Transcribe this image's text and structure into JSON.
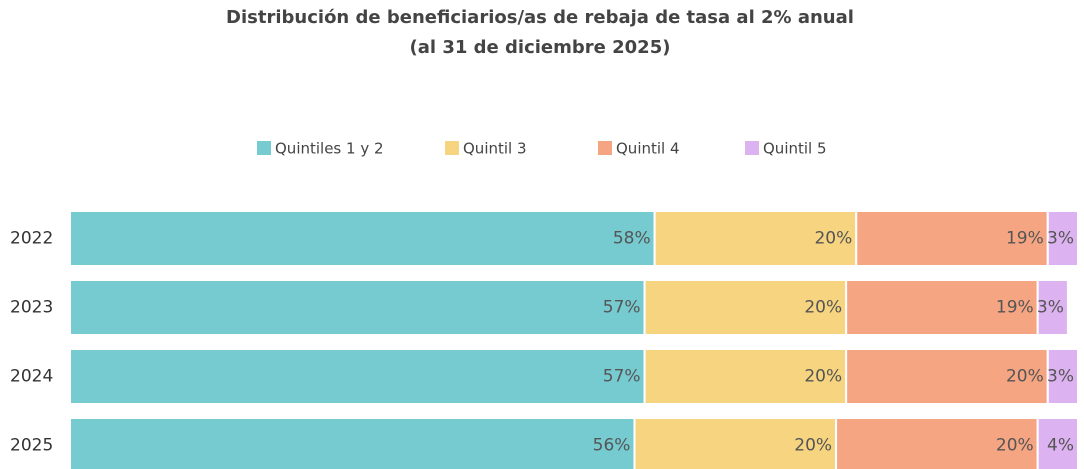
{
  "chart_data": {
    "type": "stacked_barh",
    "title": "Distribución de beneficiarios/as de rebaja de tasa al 2% anual",
    "subtitle": "(al 31 de diciembre 2025)",
    "categories": [
      "2022",
      "2023",
      "2024",
      "2025"
    ],
    "series": [
      {
        "name": "Quintiles 1 y 2",
        "color": "#76cbd1",
        "values": [
          58,
          57,
          57,
          56
        ],
        "value_labels": [
          "58%",
          "57%",
          "57%",
          "56%"
        ]
      },
      {
        "name": "Quintil 3",
        "color": "#f7d480",
        "values": [
          20,
          20,
          20,
          20
        ],
        "value_labels": [
          "20%",
          "20%",
          "20%",
          "20%"
        ]
      },
      {
        "name": "Quintil 4",
        "color": "#f6a582",
        "values": [
          19,
          19,
          20,
          20
        ],
        "value_labels": [
          "19%",
          "19%",
          "20%",
          "20%"
        ]
      },
      {
        "name": "Quintil 5",
        "color": "#ddb2f0",
        "values": [
          3,
          3,
          3,
          4
        ],
        "value_labels": [
          "3%",
          "3%",
          "3%",
          "4%"
        ]
      }
    ],
    "xlim": [
      0,
      100
    ],
    "legend": "top"
  }
}
